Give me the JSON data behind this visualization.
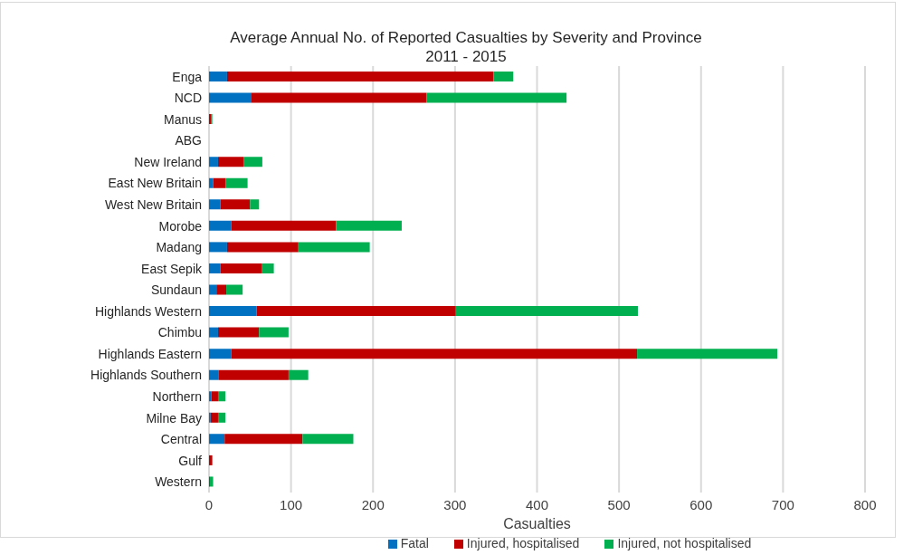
{
  "chart_data": {
    "type": "bar",
    "orientation": "horizontal",
    "stacked": true,
    "title": "Average Annual No. of Reported Casualties by Severity and Province\n2011 - 2015",
    "xlabel": "Casualties",
    "categories": [
      "Enga",
      "NCD",
      "Manus",
      "ABG",
      "New Ireland",
      "East New Britain",
      "West New Britain",
      "Morobe",
      "Madang",
      "East Sepik",
      "Sundaun",
      "Highlands Western",
      "Chimbu",
      "Highlands Eastern",
      "Highlands Southern",
      "Northern",
      "Milne Bay",
      "Central",
      "Gulf",
      "Western"
    ],
    "series": [
      {
        "name": "Fatal",
        "color": "#0070c0",
        "values": [
          22,
          51,
          0,
          0,
          11,
          5,
          14,
          27,
          22,
          14,
          9,
          58,
          11,
          27,
          12,
          3,
          2,
          19,
          0,
          0
        ]
      },
      {
        "name": "Injured, hospitalised",
        "color": "#c00000",
        "values": [
          325,
          214,
          3,
          0,
          31,
          15,
          36,
          128,
          87,
          50,
          12,
          243,
          50,
          495,
          85,
          8,
          9,
          95,
          4,
          1
        ]
      },
      {
        "name": "Injured, not hospitalised",
        "color": "#00b050",
        "values": [
          24,
          171,
          1,
          0,
          23,
          27,
          11,
          80,
          87,
          15,
          20,
          222,
          36,
          171,
          24,
          9,
          9,
          62,
          0,
          4
        ]
      }
    ],
    "xlim": [
      0,
      800
    ],
    "xticks": [
      0,
      100,
      200,
      300,
      400,
      500,
      600,
      700,
      800
    ],
    "grid": "x",
    "legend": "bottom"
  }
}
